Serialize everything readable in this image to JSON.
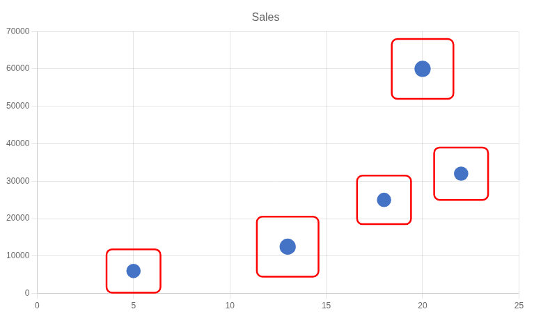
{
  "chart_data": {
    "type": "scatter",
    "title": "Sales",
    "x": [
      5,
      13,
      18,
      20,
      22
    ],
    "values": [
      6000,
      12500,
      25000,
      60000,
      32000
    ],
    "sizes": [
      220,
      280,
      220,
      280,
      220
    ],
    "color": "#4472C4",
    "boxes": {
      "color": "#ff0000",
      "x": [
        5,
        13,
        18,
        20,
        22
      ],
      "y": [
        6000,
        12500,
        25000,
        60000,
        32000
      ],
      "half_width": [
        1.4,
        1.6,
        1.4,
        1.6,
        1.4
      ],
      "half_height": [
        5800,
        8000,
        6500,
        8000,
        7000
      ]
    },
    "xlim": [
      0,
      25
    ],
    "xticks": [
      0,
      5,
      10,
      15,
      20,
      25
    ],
    "ylim": [
      0,
      70000
    ],
    "yticks": [
      0,
      10000,
      20000,
      30000,
      40000,
      50000,
      60000,
      70000
    ],
    "grid": true
  }
}
